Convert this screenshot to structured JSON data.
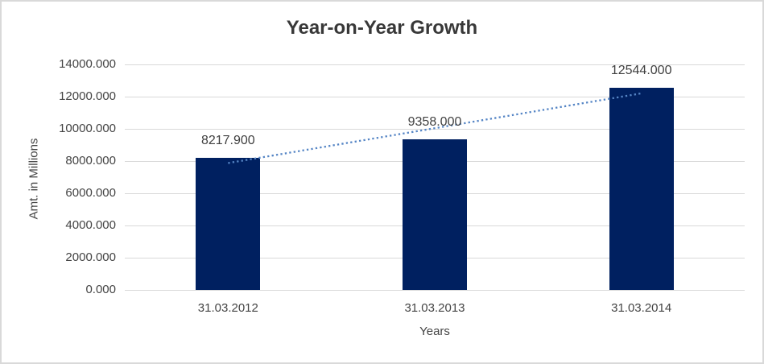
{
  "frame": {
    "background": "#FFFFFF",
    "border_color": "#D9D9D9"
  },
  "chart_data": {
    "type": "bar",
    "title": "Year-on-Year Growth",
    "xlabel": "Years",
    "ylabel": "Amt. in Millions",
    "categories": [
      "31.03.2012",
      "31.03.2013",
      "31.03.2014"
    ],
    "values": [
      8217.9,
      9358.0,
      12544.0
    ],
    "value_labels": [
      "8217.900",
      "9358.000",
      "12544.000"
    ],
    "ylim": [
      0,
      14000
    ],
    "yticks": [
      0,
      2000,
      4000,
      6000,
      8000,
      10000,
      12000,
      14000
    ],
    "ytick_labels": [
      "0.000",
      "2000.000",
      "4000.000",
      "6000.000",
      "8000.000",
      "10000.000",
      "12000.000",
      "14000.000"
    ],
    "grid": true,
    "legend": false,
    "bar_color": "#002060",
    "gridline_color": "#D9D9D9",
    "title_color": "#383838",
    "axis_text_color": "#444444",
    "data_label_color": "#404040",
    "trendline": {
      "kind": "linear",
      "style": "dotted",
      "color": "#5585C5",
      "start_value": 7877,
      "end_value": 12203
    }
  }
}
